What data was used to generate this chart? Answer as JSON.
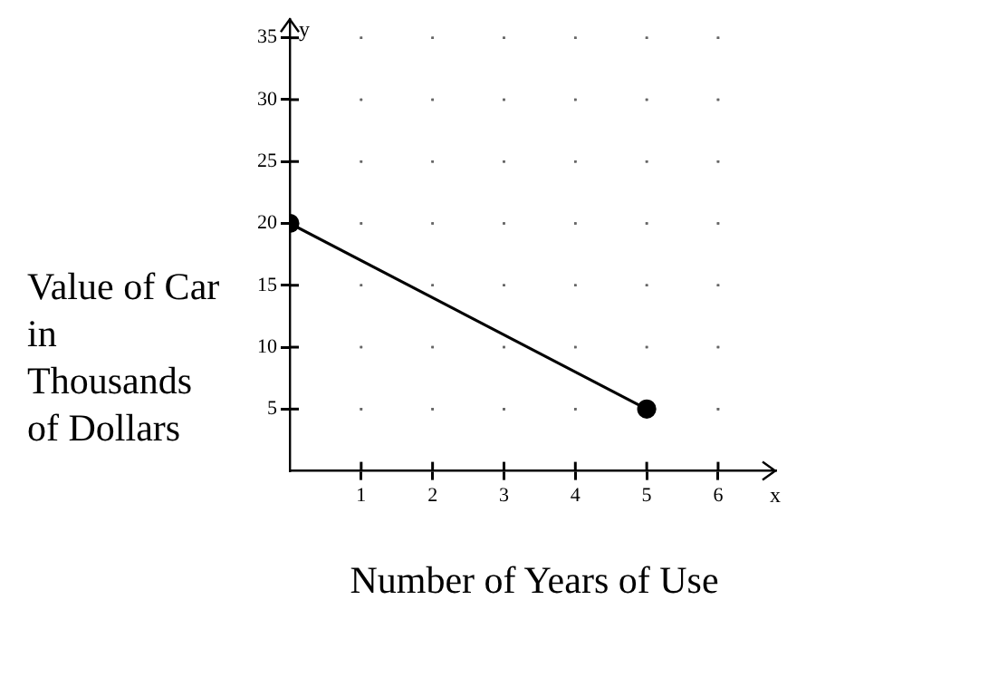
{
  "chart_data": {
    "type": "line",
    "xlabel": "Number of Years of Use",
    "ylabel": "Value of Car in Thousands of Dollars",
    "annotations": [
      "x",
      "y"
    ],
    "x": [
      0,
      5
    ],
    "series": [
      {
        "color": "#000000",
        "values": [
          20,
          5
        ]
      }
    ],
    "xlim": [
      0,
      6.8
    ],
    "xticks": [
      1,
      2,
      3,
      4,
      5,
      6
    ],
    "ylim": [
      0,
      36.5
    ],
    "yticks": [
      5,
      10,
      15,
      20,
      25,
      30,
      35
    ],
    "grid": true,
    "marker": "circle",
    "line_style": "solid",
    "legend": false
  }
}
